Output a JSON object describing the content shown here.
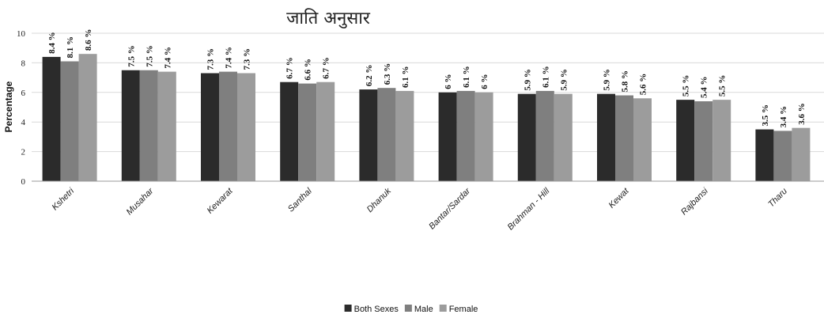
{
  "chart_data": {
    "type": "bar",
    "title": "जाति अनुसार",
    "xlabel": "",
    "ylabel": "Percentage",
    "ylim": [
      0,
      10
    ],
    "yticks": [
      0,
      2,
      4,
      6,
      8,
      10
    ],
    "grid": true,
    "legend_position": "bottom-center",
    "categories": [
      "Kshetri",
      "Musahar",
      "Kewarat",
      "Santhal",
      "Dhanuk",
      "Bantar/Sardar",
      "Brahman - Hill",
      "Kewat",
      "Rajbansi",
      "Tharu"
    ],
    "series": [
      {
        "name": "Both Sexes",
        "color": "#2b2b2b",
        "values": [
          8.4,
          7.5,
          7.3,
          6.7,
          6.2,
          6,
          5.9,
          5.9,
          5.5,
          3.5
        ],
        "labels": [
          "8.4 %",
          "7.5 %",
          "7.3 %",
          "6.7 %",
          "6.2 %",
          "6 %",
          "5.9 %",
          "5.9 %",
          "5.5 %",
          "3.5 %"
        ]
      },
      {
        "name": "Male",
        "color": "#7f7f7f",
        "values": [
          8.1,
          7.5,
          7.4,
          6.6,
          6.3,
          6.1,
          6.1,
          5.8,
          5.4,
          3.4
        ],
        "labels": [
          "8.1 %",
          "7.5 %",
          "7.4 %",
          "6.6 %",
          "6.3 %",
          "6.1 %",
          "6.1 %",
          "5.8 %",
          "5.4 %",
          "3.4 %"
        ]
      },
      {
        "name": "Female",
        "color": "#9c9c9c",
        "values": [
          8.6,
          7.4,
          7.3,
          6.7,
          6.1,
          6,
          5.9,
          5.6,
          5.5,
          3.6
        ],
        "labels": [
          "8.6 %",
          "7.4 %",
          "7.3 %",
          "6.7 %",
          "6.1 %",
          "6 %",
          "5.9 %",
          "5.6 %",
          "5.5 %",
          "3.6 %"
        ]
      }
    ]
  }
}
